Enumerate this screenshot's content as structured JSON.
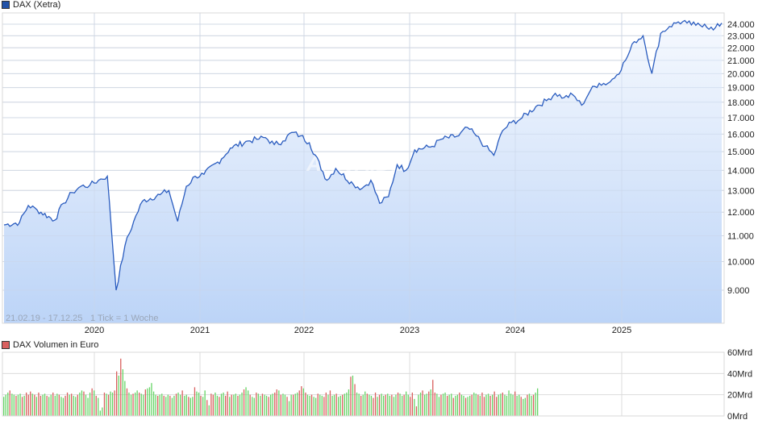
{
  "price_panel": {
    "legend_label": "DAX (Xetra)",
    "legend_color": "#2152a8",
    "date_range": "21.02.19 - 17.12.25",
    "tick_info": "1 Tick = 1 Woche",
    "watermark": "ARIVA.DE",
    "line_color": "#2a5cbf",
    "fill_top_color": "#f6f9fe",
    "fill_bottom_color": "#bcd4f7"
  },
  "volume_panel": {
    "legend_label": "DAX Volumen in Euro",
    "legend_color": "#d9605f",
    "up_color": "#66d466",
    "down_color": "#d9605f"
  },
  "chart_data": [
    {
      "type": "area",
      "title": "DAX (Xetra)",
      "subtitle": "21.02.19 - 17.12.25, 1 Tick = 1 Woche",
      "xlabel": "",
      "ylabel": "",
      "y_scale": "log",
      "ylim": [
        8400,
        24800
      ],
      "grid": true,
      "legend_position": "top-left",
      "y_ticks": [
        "24.000",
        "23.000",
        "22.000",
        "21.000",
        "20.000",
        "19.000",
        "18.000",
        "17.000",
        "16.000",
        "15.000",
        "14.000",
        "13.000",
        "12.000",
        "11.000",
        "10.000",
        "9.000"
      ],
      "x_ticks": [
        "2020",
        "2021",
        "2022",
        "2023",
        "2024",
        "2025"
      ],
      "series": [
        {
          "name": "DAX (Xetra)",
          "x": [
            "2019-02",
            "2019-04",
            "2019-05",
            "2019-06",
            "2019-08",
            "2019-09",
            "2019-10",
            "2019-11",
            "2019-12",
            "2020-01",
            "2020-02",
            "2020-03",
            "2020-04",
            "2020-05",
            "2020-06",
            "2020-08",
            "2020-09",
            "2020-10",
            "2020-11",
            "2020-12",
            "2021-01",
            "2021-03",
            "2021-04",
            "2021-06",
            "2021-07",
            "2021-08",
            "2021-09",
            "2021-10",
            "2021-11",
            "2021-12",
            "2022-01",
            "2022-03",
            "2022-04",
            "2022-06",
            "2022-07",
            "2022-08",
            "2022-09",
            "2022-10",
            "2022-11",
            "2022-12",
            "2023-01",
            "2023-03",
            "2023-04",
            "2023-06",
            "2023-07",
            "2023-08",
            "2023-09",
            "2023-10",
            "2023-11",
            "2023-12",
            "2024-01",
            "2024-03",
            "2024-04",
            "2024-05",
            "2024-06",
            "2024-07",
            "2024-08",
            "2024-09",
            "2024-10",
            "2024-11",
            "2024-12",
            "2025-01",
            "2025-02",
            "2025-03",
            "2025-04",
            "2025-05",
            "2025-06",
            "2025-07",
            "2025-08",
            "2025-09",
            "2025-10",
            "2025-11",
            "2025-12"
          ],
          "values": [
            11450,
            11550,
            12300,
            12100,
            11650,
            12400,
            12900,
            13200,
            13250,
            13500,
            13700,
            9000,
            10600,
            11600,
            12500,
            12800,
            13000,
            11600,
            13200,
            13700,
            13800,
            14600,
            15200,
            15600,
            15700,
            15800,
            15400,
            15600,
            16100,
            15900,
            15500,
            13500,
            14100,
            13300,
            13100,
            13500,
            12400,
            12700,
            14300,
            14000,
            15100,
            15300,
            15700,
            15900,
            16400,
            15900,
            15300,
            14800,
            16200,
            16700,
            16900,
            17800,
            18100,
            18600,
            18300,
            18500,
            17800,
            18800,
            19300,
            19300,
            19900,
            21000,
            22500,
            23000,
            20000,
            23200,
            23800,
            24200,
            24100,
            23900,
            24000,
            23500,
            24100
          ]
        }
      ]
    },
    {
      "type": "bar",
      "title": "DAX Volumen in Euro",
      "ylabel": "",
      "ylim": [
        0,
        60
      ],
      "y_unit": "Mrd",
      "y_ticks": [
        "60Mrd",
        "40Mrd",
        "20Mrd",
        "0Mrd"
      ],
      "x_ticks": [
        "2020",
        "2021",
        "2022",
        "2023",
        "2024",
        "2025"
      ],
      "grid": true,
      "legend_position": "top-left",
      "note": "weekly volume bars, green = up week, red = down week; typical 17-25 Mrd, peak ~54 Mrd in March 2020, ~37 Mrd in March 2022",
      "series": [
        {
          "name": "DAX Volumen in Euro",
          "values": [
            18,
            20,
            22,
            24,
            21,
            20,
            19,
            20,
            21,
            18,
            19,
            22,
            20,
            23,
            21,
            20,
            18,
            22,
            19,
            20,
            21,
            19,
            18,
            20,
            22,
            19,
            21,
            20,
            18,
            17,
            19,
            22,
            20,
            21,
            19,
            18,
            20,
            22,
            24,
            23,
            20,
            17,
            22,
            26,
            24,
            19,
            17,
            5,
            8,
            22,
            21,
            20,
            23,
            22,
            24,
            42,
            38,
            54,
            44,
            33,
            26,
            22,
            20,
            21,
            22,
            24,
            22,
            21,
            20,
            25,
            26,
            27,
            31,
            23,
            20,
            19,
            20,
            21,
            19,
            18,
            20,
            19,
            17,
            19,
            21,
            22,
            20,
            24,
            19,
            20,
            18,
            17,
            18,
            27,
            23,
            22,
            19,
            18,
            24,
            15,
            10,
            21,
            20,
            22,
            19,
            18,
            21,
            22,
            19,
            23,
            18,
            20,
            20,
            21,
            19,
            20,
            22,
            25,
            27,
            24,
            20,
            18,
            17,
            22,
            21,
            19,
            21,
            20,
            19,
            18,
            20,
            21,
            22,
            25,
            24,
            20,
            21,
            20,
            18,
            14,
            20,
            20,
            21,
            22,
            24,
            28,
            26,
            22,
            20,
            19,
            20,
            18,
            17,
            21,
            20,
            19,
            18,
            22,
            20,
            24,
            19,
            20,
            21,
            18,
            19,
            20,
            21,
            22,
            25,
            37,
            38,
            30,
            22,
            21,
            19,
            20,
            23,
            21,
            20,
            19,
            17,
            22,
            18,
            20,
            21,
            19,
            20,
            21,
            19,
            20,
            18,
            20,
            22,
            21,
            19,
            20,
            23,
            20,
            18,
            22,
            16,
            9,
            20,
            22,
            24,
            20,
            21,
            23,
            25,
            34,
            22,
            21,
            18,
            20,
            21,
            22,
            19,
            20,
            21,
            17,
            19,
            20,
            22,
            20,
            19,
            17,
            18,
            19,
            20,
            22,
            21,
            20,
            19,
            22,
            18,
            20,
            21,
            19,
            20,
            23,
            18,
            20,
            21,
            22,
            20,
            19,
            24,
            21,
            20,
            23,
            19,
            20,
            18,
            16,
            17,
            20,
            21,
            19,
            20,
            22,
            26
          ]
        }
      ]
    }
  ]
}
